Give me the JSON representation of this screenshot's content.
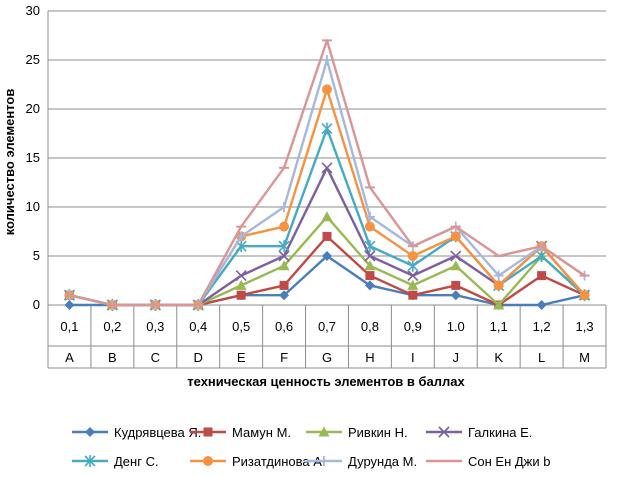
{
  "chart_data": {
    "type": "line",
    "title": "",
    "xlabel": "техническая ценность элементов в баллах",
    "ylabel": "количество элементов",
    "ylim": [
      0,
      30
    ],
    "yticks": [
      0,
      5,
      10,
      15,
      20,
      25,
      30
    ],
    "grid": "horizontal",
    "legend": "bottom",
    "categories": [
      "0,1",
      "0,2",
      "0,3",
      "0,4",
      "0,5",
      "0,6",
      "0,7",
      "0,8",
      "0,9",
      "1.0",
      "1,1",
      "1,2",
      "1,3"
    ],
    "categories_level2": [
      "A",
      "B",
      "C",
      "D",
      "E",
      "F",
      "G",
      "H",
      "I",
      "J",
      "K",
      "L",
      "M"
    ],
    "series": [
      {
        "name": "Кудрявцева Я.",
        "color": "#4a7ebb",
        "marker": "diamond",
        "values": [
          0,
          0,
          0,
          0,
          1,
          1,
          5,
          2,
          1,
          1,
          0,
          0,
          1
        ]
      },
      {
        "name": "Мамун М.",
        "color": "#be4b48",
        "marker": "square",
        "values": [
          1,
          0,
          0,
          0,
          1,
          2,
          7,
          3,
          1,
          2,
          0,
          3,
          1
        ]
      },
      {
        "name": "Ривкин Н.",
        "color": "#98b954",
        "marker": "triangle",
        "values": [
          1,
          0,
          0,
          0,
          2,
          4,
          9,
          4,
          2,
          4,
          0,
          5,
          1
        ]
      },
      {
        "name": "Галкина Е.",
        "color": "#7d60a0",
        "marker": "x",
        "values": [
          1,
          0,
          0,
          0,
          3,
          5,
          14,
          5,
          3,
          5,
          2,
          6,
          1
        ]
      },
      {
        "name": "Денг С.",
        "color": "#46aac5",
        "marker": "star",
        "values": [
          1,
          0,
          0,
          0,
          6,
          6,
          18,
          6,
          4,
          7,
          2,
          5,
          1
        ]
      },
      {
        "name": "Ризатдинова А.",
        "color": "#f69240",
        "marker": "circle",
        "values": [
          1,
          0,
          0,
          0,
          7,
          8,
          22,
          8,
          5,
          7,
          2,
          6,
          1
        ]
      },
      {
        "name": "Дурунда М.",
        "color": "#a5b8e0",
        "marker": "plus",
        "values": [
          1,
          0,
          0,
          0,
          7,
          10,
          25,
          9,
          6,
          8,
          3,
          6,
          3
        ]
      },
      {
        "name": "Сон Ен Джи b",
        "color": "#d99694",
        "marker": "dash",
        "values": [
          1,
          0,
          0,
          0,
          8,
          14,
          27,
          12,
          6,
          8,
          5,
          6,
          3
        ]
      }
    ]
  }
}
